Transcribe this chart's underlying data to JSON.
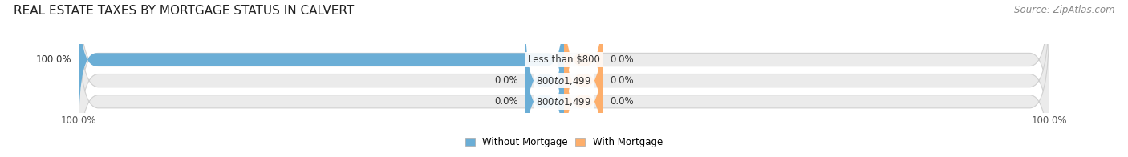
{
  "title": "REAL ESTATE TAXES BY MORTGAGE STATUS IN CALVERT",
  "source": "Source: ZipAtlas.com",
  "categories": [
    "Less than $800",
    "$800 to $1,499",
    "$800 to $1,499"
  ],
  "without_mortgage": [
    100.0,
    0.0,
    0.0
  ],
  "with_mortgage": [
    0.0,
    0.0,
    0.0
  ],
  "without_mortgage_color": "#6baed6",
  "with_mortgage_color": "#fdae6b",
  "bar_bg_color": "#ebebeb",
  "bar_border_color": "#d0d0d0",
  "bar_height": 0.62,
  "axis_min": -100,
  "axis_max": 100,
  "stub_size": 8,
  "legend_without": "Without Mortgage",
  "legend_with": "With Mortgage",
  "title_fontsize": 11,
  "source_fontsize": 8.5,
  "label_fontsize": 8.5,
  "tick_fontsize": 8.5,
  "category_label_color": "#333333",
  "pct_label_color": "#333333",
  "title_color": "#222222",
  "source_color": "#888888"
}
